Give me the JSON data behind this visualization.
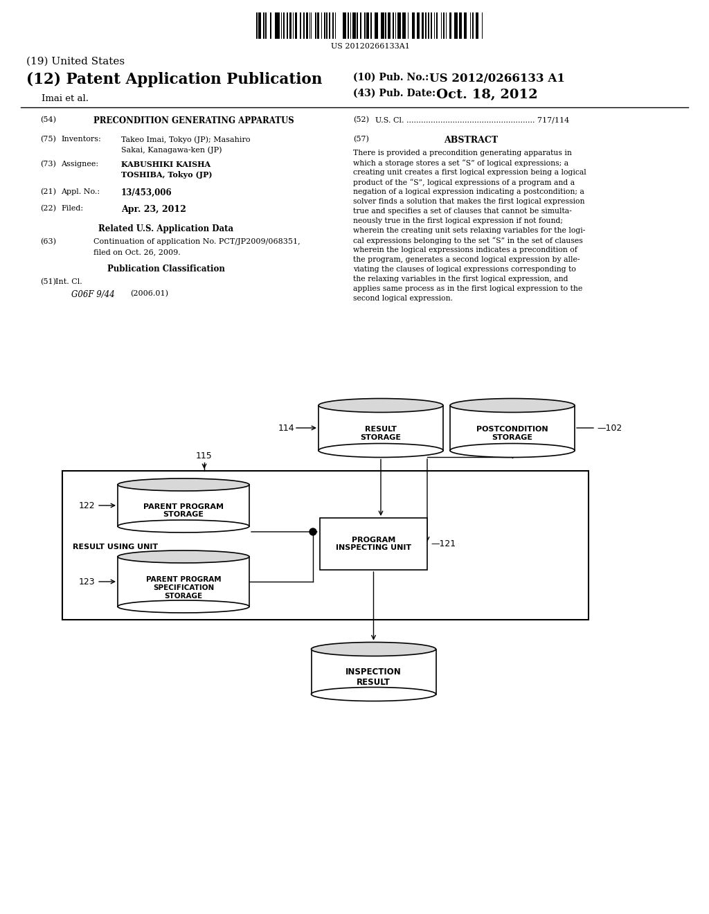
{
  "bg_color": "#ffffff",
  "barcode_text": "US 20120266133A1",
  "title_19": "(19) United States",
  "title_12": "(12) Patent Application Publication",
  "pub_no_label": "(10) Pub. No.:",
  "pub_no_value": "US 2012/0266133 A1",
  "pub_date_label": "(43) Pub. Date:",
  "pub_date_value": "Oct. 18, 2012",
  "author": "Imai et al.",
  "field_54_label": "(54)",
  "field_54_value": "PRECONDITION GENERATING APPARATUS",
  "field_52_label": "(52)",
  "field_52_value": "U.S. Cl. ..................................................... 717/114",
  "field_75_label": "(75)",
  "field_75_title": "Inventors:",
  "field_75_line1": "Takeo Imai, Tokyo (JP); Masahiro",
  "field_75_line2": "Sakai, Kanagawa-ken (JP)",
  "field_57_label": "(57)",
  "field_57_title": "ABSTRACT",
  "abstract_lines": [
    "There is provided a precondition generating apparatus in",
    "which a storage stores a set “S” of logical expressions; a",
    "creating unit creates a first logical expression being a logical",
    "product of the “S”, logical expressions of a program and a",
    "negation of a logical expression indicating a postcondition; a",
    "solver finds a solution that makes the first logical expression",
    "true and specifies a set of clauses that cannot be simulta-",
    "neously true in the first logical expression if not found;",
    "wherein the creating unit sets relaxing variables for the logi-",
    "cal expressions belonging to the set “S” in the set of clauses",
    "wherein the logical expressions indicates a precondition of",
    "the program, generates a second logical expression by alle-",
    "viating the clauses of logical expressions corresponding to",
    "the relaxing variables in the first logical expression, and",
    "applies same process as in the first logical expression to the",
    "second logical expression."
  ],
  "field_73_label": "(73)",
  "field_73_title": "Assignee:",
  "field_73_line1": "KABUSHIKI KAISHA",
  "field_73_line2": "TOSHIBA, Tokyo (JP)",
  "field_21_label": "(21)",
  "field_21_title": "Appl. No.:",
  "field_21_value": "13/453,006",
  "field_22_label": "(22)",
  "field_22_title": "Filed:",
  "field_22_value": "Apr. 23, 2012",
  "related_title": "Related U.S. Application Data",
  "field_63_label": "(63)",
  "field_63_line1": "Continuation of application No. PCT/JP2009/068351,",
  "field_63_line2": "filed on Oct. 26, 2009.",
  "pub_class_title": "Publication Classification",
  "field_51_label": "(51)",
  "field_51_title": "Int. Cl.",
  "field_51_value": "G06F 9/44",
  "field_51_year": "(2006.01)"
}
